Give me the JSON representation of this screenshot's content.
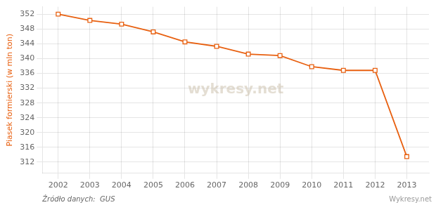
{
  "chart_data": {
    "type": "line",
    "x": [
      2002,
      2003,
      2004,
      2005,
      2006,
      2007,
      2008,
      2009,
      2010,
      2011,
      2012,
      2013
    ],
    "values": [
      352.0,
      350.3,
      349.3,
      347.2,
      344.5,
      343.3,
      341.2,
      340.8,
      337.8,
      336.8,
      336.8,
      313.5
    ],
    "color": "#e86010",
    "marker": "square",
    "ylabel": "Piasek formierski (w mln ton)",
    "xlim": [
      2001.5,
      2013.7
    ],
    "xticks": [
      2002,
      2003,
      2004,
      2005,
      2006,
      2007,
      2008,
      2009,
      2010,
      2011,
      2012,
      2013
    ],
    "ylim": [
      309,
      354
    ],
    "yticks": [
      312,
      316,
      320,
      324,
      328,
      332,
      336,
      340,
      344,
      348,
      352
    ],
    "grid": true,
    "annotations": [
      "wykresy.net",
      "Źródło danych:  GUS",
      "Wykresy.net"
    ]
  }
}
